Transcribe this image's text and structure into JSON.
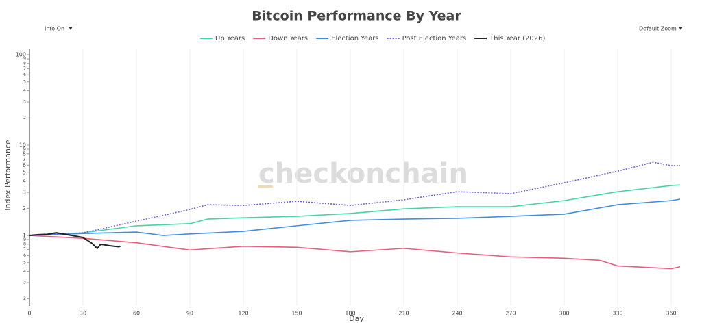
{
  "controls": {
    "info": "Info On",
    "zoom": "Default Zoom"
  },
  "chart_data": {
    "type": "line",
    "title": "Bitcoin Performance By Year",
    "watermark": "checkonchain",
    "x_label": "Day",
    "y_label": "Index Performance",
    "log_y": true,
    "grid": true,
    "xlim": [
      0,
      365
    ],
    "xticks": [
      0,
      30,
      60,
      90,
      120,
      150,
      180,
      210,
      240,
      270,
      300,
      330,
      360
    ],
    "ylim": [
      0.166,
      115
    ],
    "yticks": [
      {
        "value": 0.2,
        "label": "2"
      },
      {
        "value": 0.3,
        "label": "3"
      },
      {
        "value": 0.4,
        "label": "4"
      },
      {
        "value": 0.5,
        "label": "5"
      },
      {
        "value": 0.6,
        "label": "6"
      },
      {
        "value": 0.7,
        "label": "7"
      },
      {
        "value": 0.8,
        "label": "8"
      },
      {
        "value": 0.9,
        "label": "9"
      },
      1,
      2,
      3,
      4,
      5,
      6,
      7,
      8,
      9,
      10,
      {
        "value": 20,
        "label": "2"
      },
      {
        "value": 30,
        "label": "3"
      },
      {
        "value": 40,
        "label": "4"
      },
      {
        "value": 50,
        "label": "5"
      },
      {
        "value": 60,
        "label": "6"
      },
      {
        "value": 70,
        "label": "7"
      },
      {
        "value": 80,
        "label": "8"
      },
      {
        "value": 90,
        "label": "9"
      },
      100
    ],
    "series": [
      {
        "name": "Up Years",
        "color": "#43d6a0",
        "dash": false,
        "x": [
          0,
          30,
          60,
          90,
          100,
          120,
          150,
          180,
          210,
          240,
          270,
          300,
          330,
          360,
          365
        ],
        "values": [
          1.0,
          1.07,
          1.28,
          1.35,
          1.52,
          1.57,
          1.63,
          1.75,
          1.97,
          2.08,
          2.08,
          2.43,
          3.05,
          3.57,
          3.63
        ]
      },
      {
        "name": "Down Years",
        "color": "#ec5c7e",
        "dash": false,
        "x": [
          0,
          30,
          60,
          90,
          120,
          150,
          180,
          210,
          240,
          270,
          300,
          320,
          330,
          360,
          365
        ],
        "values": [
          1.0,
          0.93,
          0.83,
          0.69,
          0.76,
          0.74,
          0.66,
          0.72,
          0.64,
          0.58,
          0.56,
          0.53,
          0.46,
          0.43,
          0.45
        ]
      },
      {
        "name": "Election Years",
        "color": "#3f8fe6",
        "dash": false,
        "x": [
          0,
          30,
          60,
          75,
          90,
          120,
          150,
          180,
          210,
          240,
          270,
          300,
          330,
          360,
          365
        ],
        "values": [
          1.0,
          1.05,
          1.09,
          1.0,
          1.04,
          1.11,
          1.28,
          1.47,
          1.52,
          1.55,
          1.63,
          1.72,
          2.19,
          2.43,
          2.52
        ]
      },
      {
        "name": "Post Election Years",
        "color": "#6a5fe0",
        "dash": true,
        "x": [
          0,
          30,
          60,
          90,
          100,
          120,
          150,
          180,
          210,
          240,
          270,
          300,
          330,
          350,
          360,
          365
        ],
        "values": [
          1.0,
          1.07,
          1.44,
          1.94,
          2.19,
          2.15,
          2.39,
          2.15,
          2.48,
          3.05,
          2.9,
          3.83,
          5.15,
          6.46,
          5.92,
          5.92
        ]
      },
      {
        "name": "This Year (2026)",
        "color": "#222222",
        "dash": false,
        "x": [
          0,
          5,
          10,
          15,
          20,
          25,
          30,
          35,
          38,
          40,
          45,
          50,
          51
        ],
        "values": [
          1.0,
          1.02,
          1.03,
          1.07,
          1.03,
          0.99,
          0.95,
          0.82,
          0.72,
          0.8,
          0.77,
          0.75,
          0.76
        ]
      }
    ]
  }
}
